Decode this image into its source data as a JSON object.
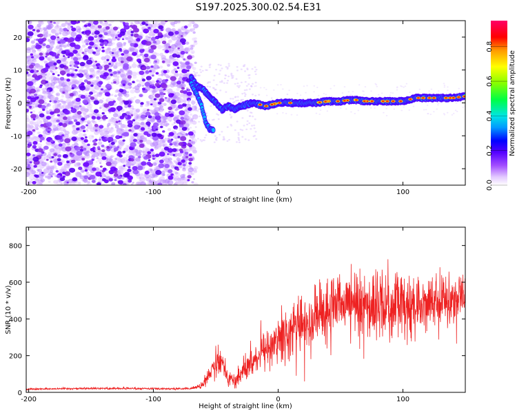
{
  "title": "S197.2025.300.02.54.E31",
  "chart_data": [
    {
      "type": "heatmap",
      "name": "spectrogram",
      "xlabel": "Height of straight line (km)",
      "ylabel": "Frequency (Hz)",
      "xlim": [
        -202,
        150
      ],
      "ylim": [
        -25,
        25
      ],
      "x_ticks": [
        -200,
        -100,
        0,
        100
      ],
      "y_ticks": [
        -20,
        -10,
        0,
        10,
        20
      ],
      "noise_region_x": [
        -202,
        -70
      ],
      "signal_track": {
        "x": [
          -70,
          -65,
          -60,
          -55,
          -50,
          -45,
          -40,
          -35,
          -30,
          -20,
          -10,
          0,
          10,
          20,
          30,
          40,
          50,
          60,
          70,
          80,
          90,
          100,
          110,
          120,
          130,
          140,
          150
        ],
        "freq": [
          8,
          5,
          4,
          2,
          0,
          -2,
          -1,
          -2,
          -1,
          0,
          -1,
          0,
          0,
          0,
          0,
          0.5,
          0.5,
          1,
          0.5,
          0.5,
          0.5,
          0.5,
          1.5,
          1.5,
          1.5,
          1.5,
          2
        ]
      },
      "branch_track": {
        "x": [
          -70,
          -62,
          -58,
          -55,
          -52
        ],
        "freq": [
          6,
          0,
          -6,
          -8,
          -8
        ]
      },
      "colorbar": {
        "label": "Normalized spectral amplitude",
        "range": [
          0.0,
          0.95
        ],
        "ticks": [
          "0.0",
          "0.2",
          "0.4",
          "0.6",
          "0.8"
        ],
        "colors": [
          "#ffffff",
          "#d9b3ff",
          "#8a2be2",
          "#3300ff",
          "#0099ff",
          "#00e5e5",
          "#00ff66",
          "#99ff00",
          "#ffff00",
          "#ff9900",
          "#ff0000",
          "#ff0066"
        ]
      }
    },
    {
      "type": "line",
      "name": "snr",
      "xlabel": "Height of straight line (km)",
      "ylabel": "SNR (10 * v/v)",
      "xlim": [
        -202,
        150
      ],
      "ylim": [
        0,
        900
      ],
      "x_ticks": [
        -200,
        -100,
        0,
        100
      ],
      "y_ticks": [
        0,
        200,
        400,
        600,
        800
      ],
      "color": "#ee2222",
      "series": [
        {
          "name": "SNR",
          "x": [
            -200,
            -150,
            -100,
            -70,
            -60,
            -55,
            -50,
            -45,
            -40,
            -35,
            -30,
            -20,
            -10,
            0,
            10,
            20,
            30,
            40,
            50,
            60,
            70,
            80,
            90,
            100,
            110,
            120,
            130,
            140,
            150
          ],
          "mean": [
            18,
            22,
            20,
            20,
            40,
            100,
            180,
            170,
            80,
            60,
            100,
            170,
            240,
            290,
            330,
            370,
            420,
            450,
            470,
            470,
            480,
            470,
            490,
            470,
            480,
            490,
            500,
            510,
            520
          ],
          "spread": [
            8,
            8,
            8,
            8,
            30,
            60,
            120,
            100,
            60,
            60,
            80,
            120,
            160,
            180,
            200,
            230,
            260,
            270,
            280,
            280,
            280,
            280,
            270,
            260,
            240,
            220,
            200,
            180,
            150
          ]
        }
      ]
    }
  ]
}
